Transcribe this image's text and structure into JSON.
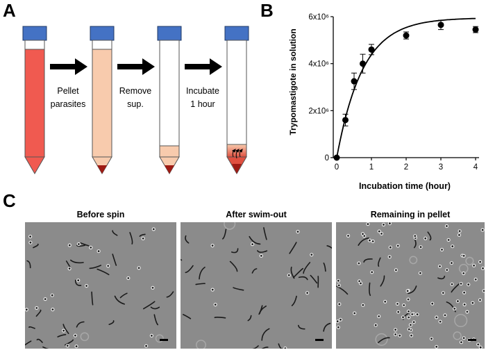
{
  "panels": {
    "a": "A",
    "b": "B",
    "c": "C"
  },
  "panel_a": {
    "steps": [
      {
        "line1": "Pellet",
        "line2": "parasites"
      },
      {
        "line1": "Remove",
        "line2": "sup."
      },
      {
        "line1": "Incubate",
        "line2": "1 hour"
      }
    ],
    "colors": {
      "cap": "#4472c4",
      "blood": "#f05a50",
      "pale": "#f8cbad",
      "pellet": "#9e1b14",
      "arrow": "#000000"
    }
  },
  "chart_data": {
    "type": "scatter",
    "xlabel": "Incubation time (hour)",
    "ylabel": "Trypomastigote in solution",
    "x_ticks": [
      "0",
      "1",
      "2",
      "3",
      "4"
    ],
    "y_ticks": [
      "0",
      "2x10⁶",
      "4x10⁶",
      "6x10⁶"
    ],
    "xlim": [
      -0.1,
      4.1
    ],
    "ylim": [
      0,
      6000000
    ],
    "series": [
      {
        "x": [
          0,
          0.25,
          0.5,
          0.75,
          1,
          2,
          3,
          4
        ],
        "y": [
          0,
          1600000,
          3250000,
          4000000,
          4600000,
          5200000,
          5650000,
          5450000
        ],
        "err": [
          0,
          250000,
          350000,
          400000,
          220000,
          150000,
          200000,
          130000
        ]
      }
    ],
    "fit": "saturation curve",
    "grid": false,
    "legend": "none"
  },
  "panel_c": {
    "titles": [
      "Before spin",
      "After swim-out",
      "Remaining in pellet"
    ]
  }
}
